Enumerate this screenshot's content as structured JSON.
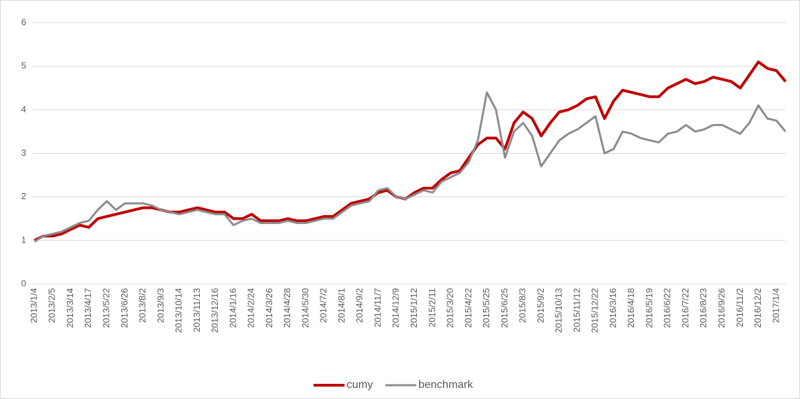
{
  "chart_data": {
    "type": "line",
    "categories": [
      "2013/1/4",
      null,
      "2013/2/5",
      null,
      "2013/3/14",
      null,
      "2013/4/17",
      null,
      "2013/5/22",
      null,
      "2013/6/26",
      null,
      "2013/8/2",
      null,
      "2013/9/3",
      null,
      "2013/10/14",
      null,
      "2013/11/13",
      null,
      "2013/12/16",
      null,
      "2014/1/16",
      null,
      "2014/2/24",
      null,
      "2014/3/26",
      null,
      "2014/4/28",
      null,
      "2014/5/30",
      null,
      "2014/7/2",
      null,
      "2014/8/1",
      null,
      "2014/9/2",
      null,
      "2014/11/7",
      null,
      "2014/12/9",
      null,
      "2015/1/12",
      null,
      "2015/2/11",
      null,
      "2015/3/20",
      null,
      "2015/4/22",
      null,
      "2015/5/25",
      null,
      "2015/6/25",
      null,
      "2015/8/3",
      null,
      "2015/9/2",
      null,
      "2015/10/13",
      null,
      "2015/11/12",
      null,
      "2015/12/22",
      null,
      "2016/3/16",
      null,
      "2016/4/18",
      null,
      "2016/5/19",
      null,
      "2016/6/22",
      null,
      "2016/7/22",
      null,
      "2016/8/23",
      null,
      "2016/9/26",
      null,
      "2016/11/2",
      null,
      "2016/12/2",
      null,
      "2017/1/4",
      null
    ],
    "series": [
      {
        "name": "cumy",
        "color": "#c00000",
        "values": [
          1.0,
          1.1,
          1.1,
          1.15,
          1.25,
          1.35,
          1.3,
          1.5,
          1.55,
          1.6,
          1.65,
          1.7,
          1.75,
          1.75,
          1.7,
          1.65,
          1.65,
          1.7,
          1.75,
          1.7,
          1.65,
          1.65,
          1.5,
          1.5,
          1.6,
          1.45,
          1.45,
          1.45,
          1.5,
          1.45,
          1.45,
          1.5,
          1.55,
          1.55,
          1.7,
          1.85,
          1.9,
          1.95,
          2.1,
          2.15,
          2.0,
          1.95,
          2.1,
          2.2,
          2.2,
          2.4,
          2.55,
          2.6,
          2.9,
          3.2,
          3.35,
          3.35,
          3.1,
          3.7,
          3.95,
          3.8,
          3.4,
          3.7,
          3.95,
          4.0,
          4.1,
          4.25,
          4.3,
          3.8,
          4.2,
          4.45,
          4.4,
          4.35,
          4.3,
          4.3,
          4.5,
          4.6,
          4.7,
          4.6,
          4.65,
          4.75,
          4.7,
          4.65,
          4.5,
          4.8,
          5.1,
          4.95,
          4.9,
          4.65
        ]
      },
      {
        "name": "benchmark",
        "color": "#8c8c8c",
        "values": [
          0.97,
          1.1,
          1.15,
          1.2,
          1.3,
          1.4,
          1.45,
          1.7,
          1.9,
          1.7,
          1.85,
          1.85,
          1.85,
          1.8,
          1.7,
          1.65,
          1.6,
          1.65,
          1.7,
          1.65,
          1.6,
          1.6,
          1.35,
          1.45,
          1.5,
          1.4,
          1.4,
          1.4,
          1.45,
          1.4,
          1.4,
          1.45,
          1.5,
          1.5,
          1.65,
          1.8,
          1.85,
          1.9,
          2.15,
          2.2,
          2.0,
          1.95,
          2.05,
          2.15,
          2.1,
          2.35,
          2.45,
          2.55,
          2.8,
          3.3,
          4.4,
          4.0,
          2.9,
          3.5,
          3.7,
          3.4,
          2.7,
          3.0,
          3.3,
          3.45,
          3.55,
          3.7,
          3.85,
          3.0,
          3.1,
          3.5,
          3.45,
          3.35,
          3.3,
          3.25,
          3.45,
          3.5,
          3.65,
          3.5,
          3.55,
          3.65,
          3.65,
          3.55,
          3.45,
          3.7,
          4.1,
          3.8,
          3.75,
          3.5
        ]
      }
    ],
    "ylim": [
      0,
      6
    ],
    "yticks": [
      0,
      1,
      2,
      3,
      4,
      5,
      6
    ],
    "grid": true,
    "legend": "bottom"
  }
}
